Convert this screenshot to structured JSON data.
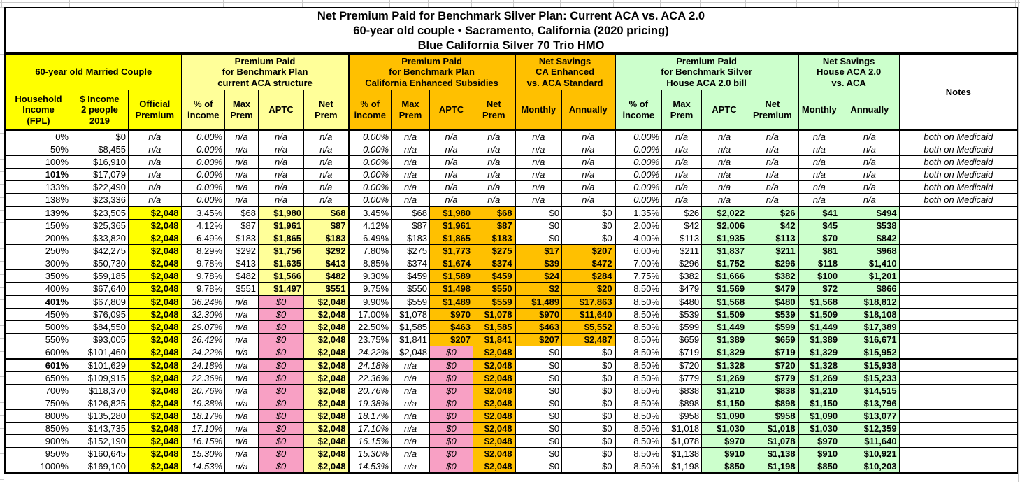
{
  "title": {
    "line1": "Net Premium Paid for Benchmark Silver Plan: Current ACA vs. ACA 2.0",
    "line2": "60-year old couple • Sacramento, California (2020 pricing)",
    "line3": "Blue California Silver 70 Trio HMO"
  },
  "palette": {
    "bright_yellow": "#FFFF00",
    "light_yellow": "#FFFF99",
    "orange": "#FFC000",
    "pink": "#F8A0C4",
    "light_green": "#CCFFCC",
    "table_border": "#000000",
    "outer_gridline": "#C9C9C9"
  },
  "groups": [
    {
      "lines": [
        "60-year old Married Couple"
      ],
      "bg": "bright_yellow",
      "span": 3
    },
    {
      "lines": [
        "Premium Paid",
        "for Benchmark Plan",
        "current ACA structure"
      ],
      "bg": "light_yellow",
      "span": 4
    },
    {
      "lines": [
        "Premium Paid",
        "for Benchmark Plan",
        "California Enhanced Subsidies"
      ],
      "bg": "orange",
      "span": 4
    },
    {
      "lines": [
        "Net Savings",
        "CA Enhanced",
        "vs. ACA Standard"
      ],
      "bg": "orange",
      "span": 2
    },
    {
      "lines": [
        "Premium Paid",
        "for Benchmark Silver",
        "House ACA 2.0 bill"
      ],
      "bg": "light_green",
      "span": 4
    },
    {
      "lines": [
        "Net Savings",
        "House ACA 2.0",
        "vs. ACA"
      ],
      "bg": "light_green",
      "span": 2
    },
    {
      "lines": [
        "Notes"
      ],
      "bg": "white",
      "span": 1,
      "rowspan": 2
    }
  ],
  "column_headers": [
    {
      "lines": [
        "Household",
        "Income",
        "(FPL)"
      ],
      "bg": "bright_yellow"
    },
    {
      "lines": [
        "$ Income",
        "2 people",
        "2019"
      ],
      "bg": "bright_yellow"
    },
    {
      "lines": [
        "Official",
        "Premium"
      ],
      "bg": "bright_yellow"
    },
    {
      "lines": [
        "% of",
        "income"
      ],
      "bg": "light_yellow"
    },
    {
      "lines": [
        "Max",
        "Prem"
      ],
      "bg": "light_yellow"
    },
    {
      "lines": [
        "APTC"
      ],
      "bg": "light_yellow"
    },
    {
      "lines": [
        "Net",
        "Prem"
      ],
      "bg": "light_yellow"
    },
    {
      "lines": [
        "% of",
        "income"
      ],
      "bg": "orange"
    },
    {
      "lines": [
        "Max",
        "Prem"
      ],
      "bg": "orange"
    },
    {
      "lines": [
        "APTC"
      ],
      "bg": "orange"
    },
    {
      "lines": [
        "Net",
        "Prem"
      ],
      "bg": "orange"
    },
    {
      "lines": [
        "Monthly"
      ],
      "bg": "orange"
    },
    {
      "lines": [
        "Annually"
      ],
      "bg": "orange"
    },
    {
      "lines": [
        "% of",
        "income"
      ],
      "bg": "light_green"
    },
    {
      "lines": [
        "Max",
        "Prem"
      ],
      "bg": "light_green"
    },
    {
      "lines": [
        "APTC"
      ],
      "bg": "light_green"
    },
    {
      "lines": [
        "Net",
        "Premium"
      ],
      "bg": "light_green"
    },
    {
      "lines": [
        "Monthly"
      ],
      "bg": "light_green"
    },
    {
      "lines": [
        "Annually"
      ],
      "bg": "light_green"
    }
  ],
  "row_formats": {
    "medicaid": [
      "r",
      "r",
      "ci",
      "ri",
      "ci",
      "ci",
      "ci",
      "ri",
      "ci",
      "ci",
      "ci",
      "ci",
      "ci",
      "ri",
      "ci",
      "ci",
      "ci",
      "ci",
      "ci",
      "ci"
    ],
    "sub_low": [
      "r",
      "r",
      "Y",
      "r",
      "r",
      "L",
      "L",
      "r",
      "r",
      "O",
      "O",
      "r",
      "r",
      "r",
      "r",
      "G",
      "G",
      "G",
      "G",
      "e"
    ],
    "sub_mid": [
      "r",
      "r",
      "Y",
      "r",
      "r",
      "L",
      "L",
      "r",
      "r",
      "O",
      "O",
      "O",
      "O",
      "r",
      "r",
      "G",
      "G",
      "G",
      "G",
      "e"
    ],
    "above400": [
      "r",
      "r",
      "Y",
      "ri",
      "ci",
      "P",
      "L",
      "r",
      "r",
      "O",
      "O",
      "O",
      "O",
      "r",
      "r",
      "G",
      "G",
      "G",
      "G",
      "e"
    ],
    "t600": [
      "r",
      "r",
      "Y",
      "ri",
      "ci",
      "P",
      "L",
      "ri",
      "r",
      "P",
      "O",
      "r",
      "r",
      "r",
      "r",
      "G",
      "G",
      "G",
      "G",
      "e"
    ],
    "above600": [
      "r",
      "r",
      "Y",
      "ri",
      "ci",
      "P",
      "L",
      "ri",
      "ci",
      "P",
      "O",
      "r",
      "r",
      "r",
      "r",
      "G",
      "G",
      "G",
      "G",
      "e"
    ]
  },
  "rows": [
    {
      "fmt": "medicaid",
      "bold_fpl": false,
      "cells": [
        "0%",
        "$0",
        "n/a",
        "0.00%",
        "n/a",
        "n/a",
        "n/a",
        "0.00%",
        "n/a",
        "n/a",
        "n/a",
        "n/a",
        "n/a",
        "0.00%",
        "n/a",
        "n/a",
        "n/a",
        "n/a",
        "n/a",
        "both on Medicaid"
      ]
    },
    {
      "fmt": "medicaid",
      "bold_fpl": false,
      "cells": [
        "50%",
        "$8,455",
        "n/a",
        "0.00%",
        "n/a",
        "n/a",
        "n/a",
        "0.00%",
        "n/a",
        "n/a",
        "n/a",
        "n/a",
        "n/a",
        "0.00%",
        "n/a",
        "n/a",
        "n/a",
        "n/a",
        "n/a",
        "both on Medicaid"
      ]
    },
    {
      "fmt": "medicaid",
      "bold_fpl": false,
      "cells": [
        "100%",
        "$16,910",
        "n/a",
        "0.00%",
        "n/a",
        "n/a",
        "n/a",
        "0.00%",
        "n/a",
        "n/a",
        "n/a",
        "n/a",
        "n/a",
        "0.00%",
        "n/a",
        "n/a",
        "n/a",
        "n/a",
        "n/a",
        "both on Medicaid"
      ]
    },
    {
      "fmt": "medicaid",
      "bold_fpl": true,
      "cells": [
        "101%",
        "$17,079",
        "n/a",
        "0.00%",
        "n/a",
        "n/a",
        "n/a",
        "0.00%",
        "n/a",
        "n/a",
        "n/a",
        "n/a",
        "n/a",
        "0.00%",
        "n/a",
        "n/a",
        "n/a",
        "n/a",
        "n/a",
        "both on Medicaid"
      ]
    },
    {
      "fmt": "medicaid",
      "bold_fpl": false,
      "cells": [
        "133%",
        "$22,490",
        "n/a",
        "0.00%",
        "n/a",
        "n/a",
        "n/a",
        "0.00%",
        "n/a",
        "n/a",
        "n/a",
        "n/a",
        "n/a",
        "0.00%",
        "n/a",
        "n/a",
        "n/a",
        "n/a",
        "n/a",
        "both on Medicaid"
      ]
    },
    {
      "fmt": "medicaid",
      "bold_fpl": false,
      "cells": [
        "138%",
        "$23,336",
        "n/a",
        "0.00%",
        "n/a",
        "n/a",
        "n/a",
        "0.00%",
        "n/a",
        "n/a",
        "n/a",
        "n/a",
        "n/a",
        "0.00%",
        "n/a",
        "n/a",
        "n/a",
        "n/a",
        "n/a",
        "both on Medicaid"
      ]
    },
    {
      "fmt": "sub_low",
      "bold_fpl": true,
      "cells": [
        "139%",
        "$23,505",
        "$2,048",
        "3.45%",
        "$68",
        "$1,980",
        "$68",
        "3.45%",
        "$68",
        "$1,980",
        "$68",
        "$0",
        "$0",
        "1.35%",
        "$26",
        "$2,022",
        "$26",
        "$41",
        "$494",
        ""
      ]
    },
    {
      "fmt": "sub_low",
      "bold_fpl": false,
      "cells": [
        "150%",
        "$25,365",
        "$2,048",
        "4.12%",
        "$87",
        "$1,961",
        "$87",
        "4.12%",
        "$87",
        "$1,961",
        "$87",
        "$0",
        "$0",
        "2.00%",
        "$42",
        "$2,006",
        "$42",
        "$45",
        "$538",
        ""
      ]
    },
    {
      "fmt": "sub_low",
      "bold_fpl": false,
      "cells": [
        "200%",
        "$33,820",
        "$2,048",
        "6.49%",
        "$183",
        "$1,865",
        "$183",
        "6.49%",
        "$183",
        "$1,865",
        "$183",
        "$0",
        "$0",
        "4.00%",
        "$113",
        "$1,935",
        "$113",
        "$70",
        "$842",
        ""
      ]
    },
    {
      "fmt": "sub_mid",
      "bold_fpl": false,
      "cells": [
        "250%",
        "$42,275",
        "$2,048",
        "8.29%",
        "$292",
        "$1,756",
        "$292",
        "7.80%",
        "$275",
        "$1,773",
        "$275",
        "$17",
        "$207",
        "6.00%",
        "$211",
        "$1,837",
        "$211",
        "$81",
        "$968",
        ""
      ]
    },
    {
      "fmt": "sub_mid",
      "bold_fpl": false,
      "cells": [
        "300%",
        "$50,730",
        "$2,048",
        "9.78%",
        "$413",
        "$1,635",
        "$413",
        "8.85%",
        "$374",
        "$1,674",
        "$374",
        "$39",
        "$472",
        "7.00%",
        "$296",
        "$1,752",
        "$296",
        "$118",
        "$1,410",
        ""
      ]
    },
    {
      "fmt": "sub_mid",
      "bold_fpl": false,
      "cells": [
        "350%",
        "$59,185",
        "$2,048",
        "9.78%",
        "$482",
        "$1,566",
        "$482",
        "9.30%",
        "$459",
        "$1,589",
        "$459",
        "$24",
        "$284",
        "7.75%",
        "$382",
        "$1,666",
        "$382",
        "$100",
        "$1,201",
        ""
      ]
    },
    {
      "fmt": "sub_mid",
      "bold_fpl": false,
      "cells": [
        "400%",
        "$67,640",
        "$2,048",
        "9.78%",
        "$551",
        "$1,497",
        "$551",
        "9.75%",
        "$550",
        "$1,498",
        "$550",
        "$2",
        "$20",
        "8.50%",
        "$479",
        "$1,569",
        "$479",
        "$72",
        "$866",
        ""
      ]
    },
    {
      "fmt": "above400",
      "bold_fpl": true,
      "cells": [
        "401%",
        "$67,809",
        "$2,048",
        "36.24%",
        "n/a",
        "$0",
        "$2,048",
        "9.90%",
        "$559",
        "$1,489",
        "$559",
        "$1,489",
        "$17,863",
        "8.50%",
        "$480",
        "$1,568",
        "$480",
        "$1,568",
        "$18,812",
        ""
      ]
    },
    {
      "fmt": "above400",
      "bold_fpl": false,
      "cells": [
        "450%",
        "$76,095",
        "$2,048",
        "32.30%",
        "n/a",
        "$0",
        "$2,048",
        "17.00%",
        "$1,078",
        "$970",
        "$1,078",
        "$970",
        "$11,640",
        "8.50%",
        "$539",
        "$1,509",
        "$539",
        "$1,509",
        "$18,108",
        ""
      ]
    },
    {
      "fmt": "above400",
      "bold_fpl": false,
      "cells": [
        "500%",
        "$84,550",
        "$2,048",
        "29.07%",
        "n/a",
        "$0",
        "$2,048",
        "22.50%",
        "$1,585",
        "$463",
        "$1,585",
        "$463",
        "$5,552",
        "8.50%",
        "$599",
        "$1,449",
        "$599",
        "$1,449",
        "$17,389",
        ""
      ]
    },
    {
      "fmt": "above400",
      "bold_fpl": false,
      "cells": [
        "550%",
        "$93,005",
        "$2,048",
        "26.42%",
        "n/a",
        "$0",
        "$2,048",
        "23.75%",
        "$1,841",
        "$207",
        "$1,841",
        "$207",
        "$2,487",
        "8.50%",
        "$659",
        "$1,389",
        "$659",
        "$1,389",
        "$16,671",
        ""
      ]
    },
    {
      "fmt": "t600",
      "bold_fpl": false,
      "cells": [
        "600%",
        "$101,460",
        "$2,048",
        "24.22%",
        "n/a",
        "$0",
        "$2,048",
        "24.22%",
        "$2,048",
        "$0",
        "$2,048",
        "$0",
        "$0",
        "8.50%",
        "$719",
        "$1,329",
        "$719",
        "$1,329",
        "$15,952",
        ""
      ]
    },
    {
      "fmt": "above600",
      "bold_fpl": true,
      "cells": [
        "601%",
        "$101,629",
        "$2,048",
        "24.18%",
        "n/a",
        "$0",
        "$2,048",
        "24.18%",
        "n/a",
        "$0",
        "$2,048",
        "$0",
        "$0",
        "8.50%",
        "$720",
        "$1,328",
        "$720",
        "$1,328",
        "$15,938",
        ""
      ]
    },
    {
      "fmt": "above600",
      "bold_fpl": false,
      "cells": [
        "650%",
        "$109,915",
        "$2,048",
        "22.36%",
        "n/a",
        "$0",
        "$2,048",
        "22.36%",
        "n/a",
        "$0",
        "$2,048",
        "$0",
        "$0",
        "8.50%",
        "$779",
        "$1,269",
        "$779",
        "$1,269",
        "$15,233",
        ""
      ]
    },
    {
      "fmt": "above600",
      "bold_fpl": false,
      "cells": [
        "700%",
        "$118,370",
        "$2,048",
        "20.76%",
        "n/a",
        "$0",
        "$2,048",
        "20.76%",
        "n/a",
        "$0",
        "$2,048",
        "$0",
        "$0",
        "8.50%",
        "$838",
        "$1,210",
        "$838",
        "$1,210",
        "$14,515",
        ""
      ]
    },
    {
      "fmt": "above600",
      "bold_fpl": false,
      "cells": [
        "750%",
        "$126,825",
        "$2,048",
        "19.38%",
        "n/a",
        "$0",
        "$2,048",
        "19.38%",
        "n/a",
        "$0",
        "$2,048",
        "$0",
        "$0",
        "8.50%",
        "$898",
        "$1,150",
        "$898",
        "$1,150",
        "$13,796",
        ""
      ]
    },
    {
      "fmt": "above600",
      "bold_fpl": false,
      "cells": [
        "800%",
        "$135,280",
        "$2,048",
        "18.17%",
        "n/a",
        "$0",
        "$2,048",
        "18.17%",
        "n/a",
        "$0",
        "$2,048",
        "$0",
        "$0",
        "8.50%",
        "$958",
        "$1,090",
        "$958",
        "$1,090",
        "$13,077",
        ""
      ]
    },
    {
      "fmt": "above600",
      "bold_fpl": false,
      "cells": [
        "850%",
        "$143,735",
        "$2,048",
        "17.10%",
        "n/a",
        "$0",
        "$2,048",
        "17.10%",
        "n/a",
        "$0",
        "$2,048",
        "$0",
        "$0",
        "8.50%",
        "$1,018",
        "$1,030",
        "$1,018",
        "$1,030",
        "$12,359",
        ""
      ]
    },
    {
      "fmt": "above600",
      "bold_fpl": false,
      "cells": [
        "900%",
        "$152,190",
        "$2,048",
        "16.15%",
        "n/a",
        "$0",
        "$2,048",
        "16.15%",
        "n/a",
        "$0",
        "$2,048",
        "$0",
        "$0",
        "8.50%",
        "$1,078",
        "$970",
        "$1,078",
        "$970",
        "$11,640",
        ""
      ]
    },
    {
      "fmt": "above600",
      "bold_fpl": false,
      "cells": [
        "950%",
        "$160,645",
        "$2,048",
        "15.30%",
        "n/a",
        "$0",
        "$2,048",
        "15.30%",
        "n/a",
        "$0",
        "$2,048",
        "$0",
        "$0",
        "8.50%",
        "$1,138",
        "$910",
        "$1,138",
        "$910",
        "$10,921",
        ""
      ]
    },
    {
      "fmt": "above600",
      "bold_fpl": false,
      "cells": [
        "1000%",
        "$169,100",
        "$2,048",
        "14.53%",
        "n/a",
        "$0",
        "$2,048",
        "14.53%",
        "n/a",
        "$0",
        "$2,048",
        "$0",
        "$0",
        "8.50%",
        "$1,198",
        "$850",
        "$1,198",
        "$850",
        "$10,203",
        ""
      ]
    }
  ]
}
